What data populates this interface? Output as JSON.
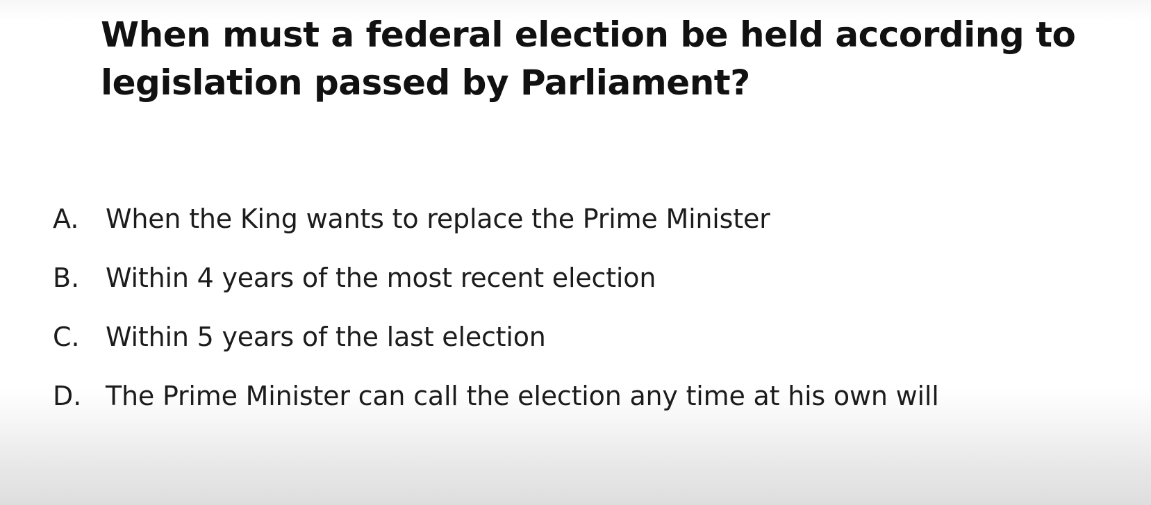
{
  "question": {
    "title": "When must a federal election be held according to legislation passed by Parliament?"
  },
  "options": [
    {
      "letter": "A.",
      "text": "When the King wants to replace the Prime Minister"
    },
    {
      "letter": "B.",
      "text": "Within 4 years of the most recent election"
    },
    {
      "letter": "C.",
      "text": "Within 5 years of the last election"
    },
    {
      "letter": "D.",
      "text": "The Prime Minister can call the election any time at his own will"
    }
  ],
  "colors": {
    "text": "#111111",
    "background": "#ffffff",
    "bottom_shade": "#dedede"
  }
}
